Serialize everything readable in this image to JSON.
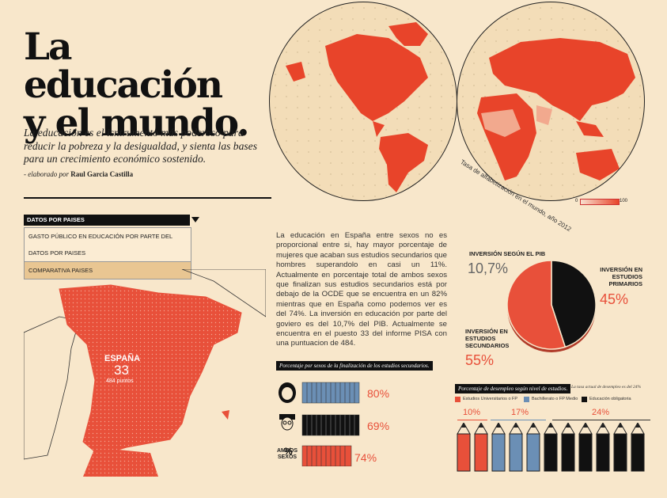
{
  "title": "La educación\ny el mundo.",
  "lead": "La educación es el isntrumento más poderoso para reducir la pobreza y la desigualdad, y sienta las bases para un crecimiento económico sostenido.",
  "byline": {
    "prefix": "- elaborado por",
    "author": "Raul Garcia Castilla"
  },
  "map": {
    "caption": "Tasa de alfabetización en el mundo, año 2012",
    "scale_min": "0",
    "scale_max": "100"
  },
  "dropdown": {
    "selected": "DATOS POR PAISES",
    "items": [
      "GASTO PÚBLICO EN EDUCACIÓN POR PARTE DEL GOBIERNO",
      "DATOS POR PAISES",
      "COMPARATIVA PAISES"
    ]
  },
  "spain": {
    "name": "ESPAÑA",
    "rank": "33",
    "points": "484 puntos"
  },
  "body_text": "La educación en España entre sexos no es proporcional entre si, hay mayor porcentaje de mujeres que acaban sus estudios secundarios que hombres superandolo en casi un 11%. Actualmente en porcentaje total de ambos sexos que finalizan sus estudios secundarios está por debajo de la OCDE que se encuentra en un 82% mientras que en España como podemos ver es del 74%. La inversión en educación por parte del goviero es del 10,7% del PIB. Actualmente se encuentra en el puesto 33 del informe PISA con una puntuacion de 484.",
  "secondary": {
    "label": "Porcentaje por sexos de la finalización de los estudios secundarios.",
    "female_pct": "80%",
    "male_pct": "69%",
    "both_pct": "74%",
    "both_label": "AMBOS SEXOS",
    "both_symbol": "%"
  },
  "investment": {
    "pib_label": "INVERSIÓN SEGÚN EL PIB",
    "pib_value": "10,7%",
    "primary_label": "INVERSIÓN EN ESTUDIOS PRIMARIOS",
    "primary_value": "45%",
    "secondary_label": "INVERSIÓN EN ESTUDIOS SECUNDARIOS",
    "secondary_value": "55%"
  },
  "chart_data": {
    "type": "pie",
    "title": "",
    "series": [
      {
        "name": "INVERSIÓN EN ESTUDIOS PRIMARIOS",
        "value": 45,
        "color": "#111111"
      },
      {
        "name": "INVERSIÓN EN ESTUDIOS SECUNDARIOS",
        "value": 55,
        "color": "#e8503a"
      }
    ]
  },
  "unemployment": {
    "label": "Porcentaje de desempleo según nivel de estudios.",
    "note": "La tasa actual de desempleo es del 24%",
    "legend": [
      {
        "label": "Estudios Universitarios o FP",
        "color": "#e8503a"
      },
      {
        "label": "Bachillerato o FP Medio",
        "color": "#6b8fb5"
      },
      {
        "label": "Educación obligatoria",
        "color": "#111111"
      }
    ],
    "groups": [
      {
        "pct": "10%",
        "count": 2,
        "color": "#e8503a"
      },
      {
        "pct": "17%",
        "count": 3,
        "color": "#6b8fb5"
      },
      {
        "pct": "24%",
        "count": 6,
        "color": "#111111"
      }
    ]
  },
  "colors": {
    "background": "#f8e7cb",
    "accent": "#e8503a",
    "blue": "#6b8fb5",
    "dark": "#111111"
  }
}
